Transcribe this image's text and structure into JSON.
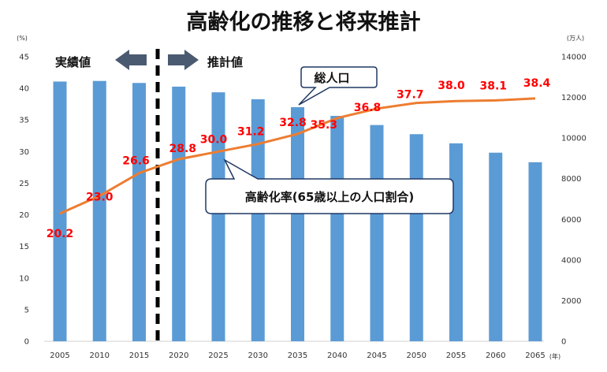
{
  "chart_data": {
    "type": "bar",
    "title": "高齢化の推移と将来推計",
    "categories": [
      "2005",
      "2010",
      "2015",
      "2020",
      "2025",
      "2030",
      "2035",
      "2040",
      "2045",
      "2050",
      "2055",
      "2060",
      "2065"
    ],
    "x_unit": "(年)",
    "series": [
      {
        "name": "総人口",
        "type": "bar",
        "axis": "right",
        "color": "#5b9bd5",
        "values": [
          12780,
          12810,
          12710,
          12530,
          12250,
          11910,
          11520,
          11090,
          10640,
          10190,
          9740,
          9280,
          8810
        ]
      },
      {
        "name": "高齢化率(65歳以上の人口割合)",
        "type": "line",
        "axis": "left",
        "color": "#ed7d31",
        "values": [
          20.2,
          23.0,
          26.6,
          28.8,
          30.0,
          31.2,
          32.8,
          35.3,
          36.8,
          37.7,
          38.0,
          38.1,
          38.4
        ],
        "data_labels": [
          "20.2",
          "23.0",
          "26.6",
          "28.8",
          "30.0",
          "31.2",
          "32.8",
          "35.3",
          "36.8",
          "37.7",
          "38.0",
          "38.1",
          "38.4"
        ]
      }
    ],
    "y_left": {
      "unit": "(%)",
      "range": [
        0,
        45
      ],
      "ticks": [
        "0",
        "5",
        "10",
        "15",
        "20",
        "25",
        "30",
        "35",
        "40",
        "45"
      ]
    },
    "y_right": {
      "unit": "(万人)",
      "range": [
        0,
        14000
      ],
      "ticks": [
        "0",
        "2000",
        "4000",
        "6000",
        "8000",
        "10000",
        "12000",
        "14000"
      ]
    },
    "divider_between": [
      "2015",
      "2020"
    ],
    "phase_labels": {
      "actual": "実績値",
      "projection": "推計値"
    },
    "callouts": {
      "population": "総人口",
      "aging_rate": "高齢化率(65歳以上の人口割合)"
    },
    "colors": {
      "arrow": "#4a5a70",
      "callout_border": "#1f3864",
      "label": "#ff0000"
    }
  }
}
